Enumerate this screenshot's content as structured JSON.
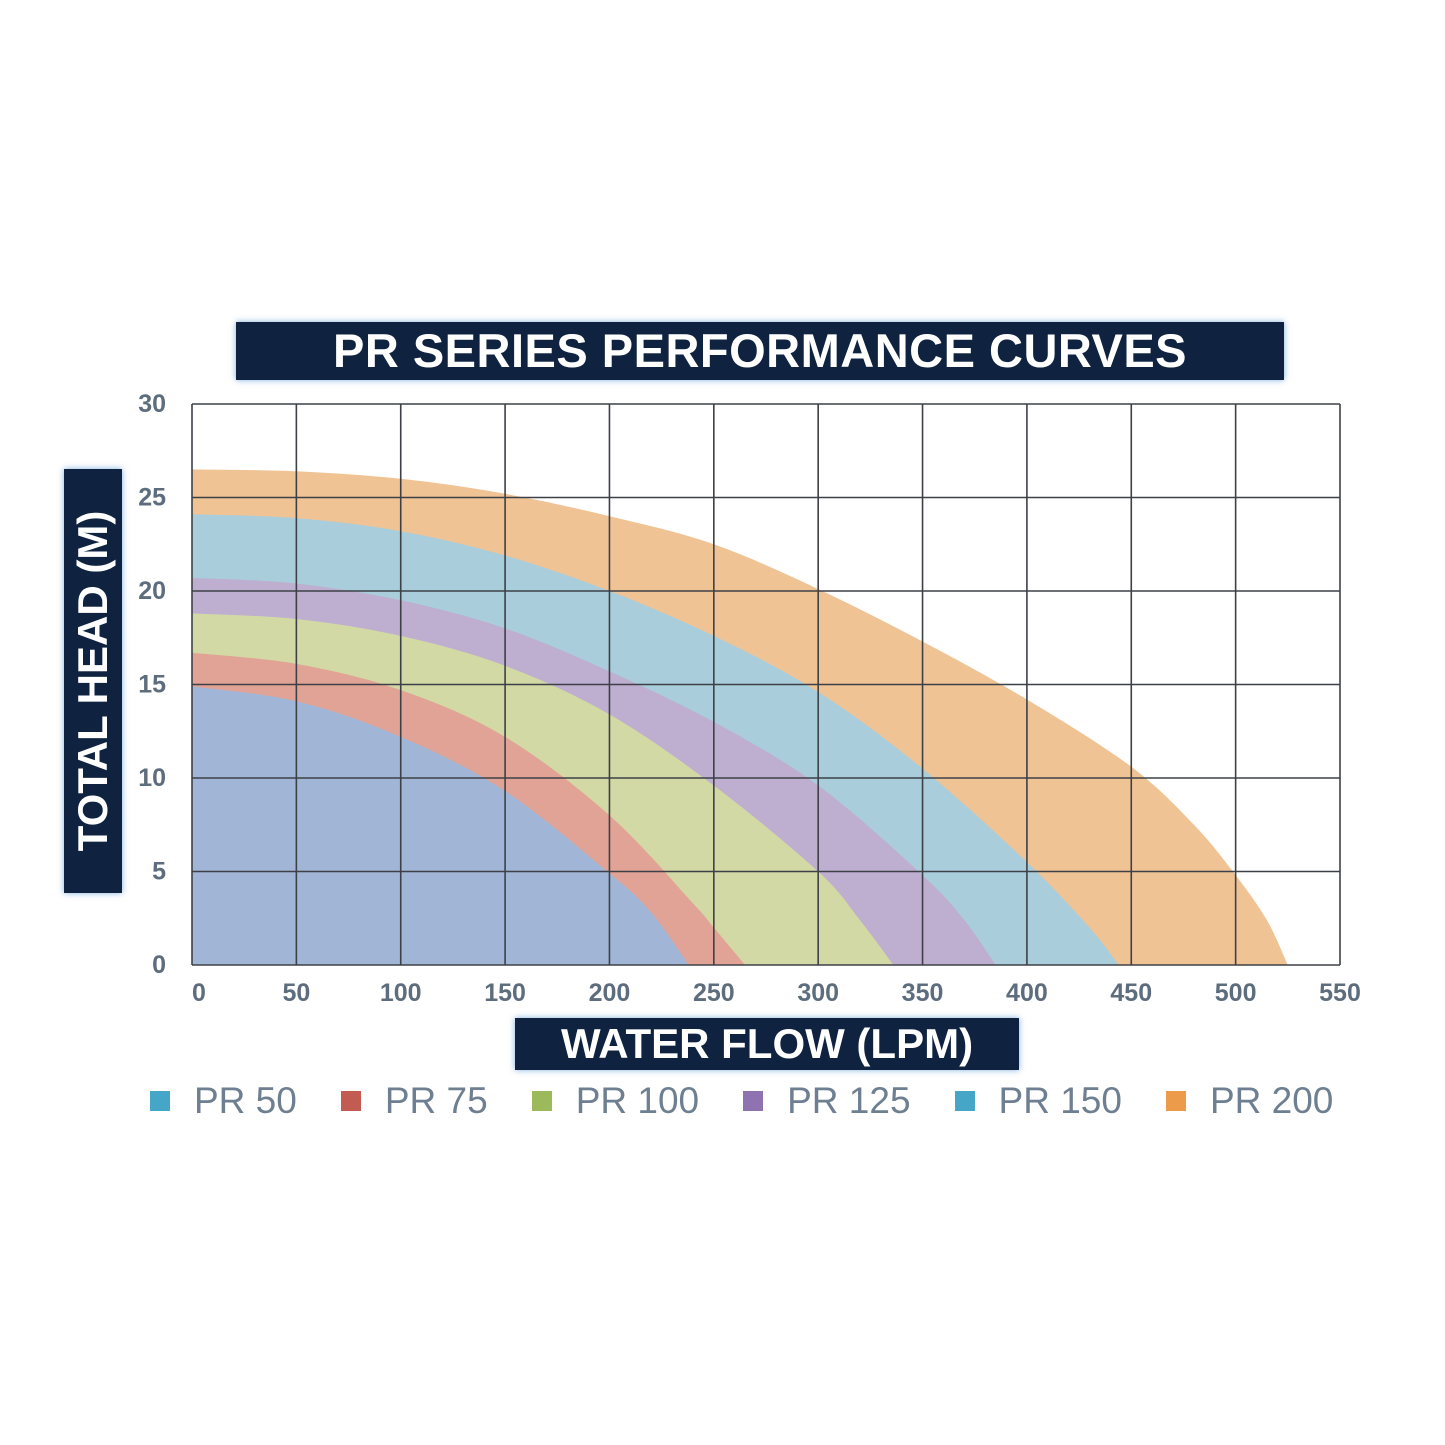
{
  "chart_data": {
    "type": "area",
    "title": "PR SERIES PERFORMANCE CURVES",
    "xlabel": "WATER FLOW (LPM)",
    "ylabel": "TOTAL HEAD (M)",
    "xlim": [
      0,
      550
    ],
    "ylim": [
      0,
      30
    ],
    "xticks": [
      0,
      50,
      100,
      150,
      200,
      250,
      300,
      350,
      400,
      450,
      500,
      550
    ],
    "yticks": [
      0,
      5,
      10,
      15,
      20,
      25,
      30
    ],
    "grid": true,
    "legend_position": "bottom",
    "series": [
      {
        "name": "PR 50",
        "legend_color": "#45a6c8",
        "fill_color": "#a1b6d6",
        "x": [
          0,
          50,
          100,
          150,
          200,
          220,
          238
        ],
        "y": [
          14.9,
          14.1,
          12.2,
          9.3,
          4.9,
          2.8,
          0
        ]
      },
      {
        "name": "PR 75",
        "legend_color": "#c25b52",
        "fill_color": "#e1a396",
        "x": [
          0,
          50,
          100,
          150,
          200,
          240,
          250,
          265
        ],
        "y": [
          16.7,
          16.1,
          14.7,
          12.2,
          8.0,
          3.3,
          2.0,
          0
        ]
      },
      {
        "name": "PR 100",
        "legend_color": "#9cba5c",
        "fill_color": "#d2d9a5",
        "x": [
          0,
          50,
          100,
          150,
          200,
          250,
          300,
          320,
          336
        ],
        "y": [
          18.8,
          18.5,
          17.6,
          16.0,
          13.4,
          9.6,
          5.0,
          2.4,
          0
        ]
      },
      {
        "name": "PR 125",
        "legend_color": "#8e73b0",
        "fill_color": "#beaed0",
        "x": [
          0,
          50,
          100,
          150,
          200,
          250,
          300,
          350,
          370,
          385
        ],
        "y": [
          20.7,
          20.4,
          19.5,
          18.0,
          15.7,
          13.0,
          9.6,
          4.8,
          2.4,
          0
        ]
      },
      {
        "name": "PR 150",
        "legend_color": "#45a6c8",
        "fill_color": "#a9cddb",
        "x": [
          0,
          50,
          100,
          150,
          200,
          250,
          300,
          350,
          400,
          430,
          444
        ],
        "y": [
          24.1,
          23.9,
          23.2,
          21.9,
          20.0,
          17.6,
          14.6,
          10.5,
          5.5,
          2.0,
          0
        ]
      },
      {
        "name": "PR 200",
        "legend_color": "#ec9b4a",
        "fill_color": "#f0c395",
        "x": [
          0,
          50,
          100,
          150,
          200,
          250,
          300,
          350,
          400,
          450,
          480,
          500,
          515,
          525
        ],
        "y": [
          26.5,
          26.4,
          26.0,
          25.2,
          24.0,
          22.5,
          20.1,
          17.3,
          14.2,
          10.6,
          7.5,
          4.8,
          2.4,
          0
        ]
      }
    ]
  }
}
